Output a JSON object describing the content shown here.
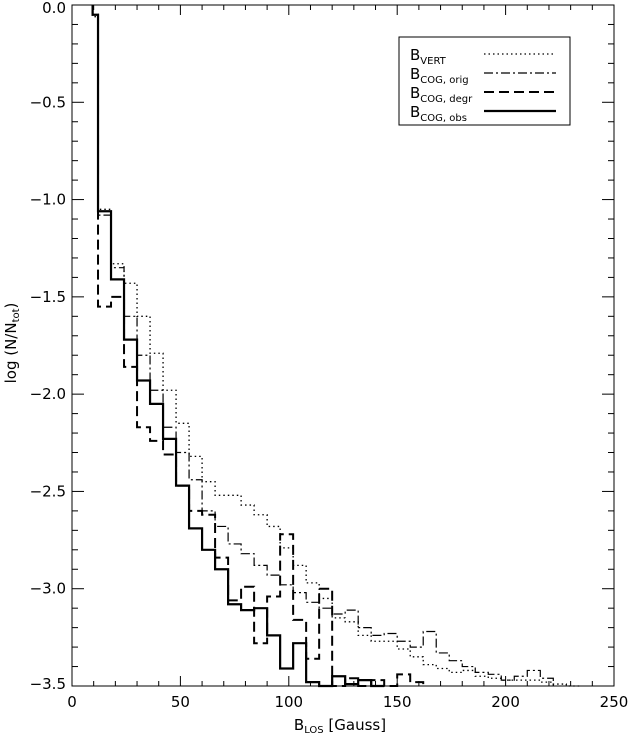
{
  "chart_data": {
    "type": "line",
    "subtype": "step-histogram",
    "xlabel": {
      "main": "B",
      "sub": "LOS",
      "rest": " [Gauss]"
    },
    "ylabel": {
      "pre": "log (N/N",
      "sub": "tot",
      "post": ")"
    },
    "xlim": [
      0,
      250
    ],
    "ylim": [
      -3.5,
      0.0
    ],
    "x_ticks": [
      0,
      50,
      100,
      150,
      200,
      250
    ],
    "x_tick_labels": [
      "0",
      "50",
      "100",
      "150",
      "200",
      "250"
    ],
    "y_ticks": [
      0.0,
      -0.5,
      -1.0,
      -1.5,
      -2.0,
      -2.5,
      -3.0,
      -3.5
    ],
    "y_tick_labels": [
      "0.0",
      "−0.5",
      "−1.0",
      "−1.5",
      "−2.0",
      "−2.5",
      "−3.0",
      "−3.5"
    ],
    "grid": false,
    "legend_position": "top-right",
    "series": [
      {
        "name": "B_VERT",
        "legend": {
          "main": "B",
          "sub": "VERT"
        },
        "style": "dotted",
        "edges": [
          9.5,
          12,
          18,
          24,
          30,
          36,
          42,
          48,
          54,
          60,
          66,
          72,
          78,
          84,
          90,
          96,
          102,
          108,
          114,
          120,
          126,
          132,
          138,
          144,
          150,
          156,
          162,
          168,
          174,
          180,
          186,
          192,
          198,
          204,
          210,
          216,
          222,
          228,
          234
        ],
        "values": [
          -0.06,
          -1.05,
          -1.33,
          -1.43,
          -1.6,
          -1.79,
          -1.98,
          -2.15,
          -2.32,
          -2.45,
          -2.52,
          -2.52,
          -2.57,
          -2.62,
          -2.68,
          -2.79,
          -2.88,
          -2.97,
          -3.05,
          -3.15,
          -3.17,
          -3.24,
          -3.27,
          -3.27,
          -3.31,
          -3.35,
          -3.39,
          -3.41,
          -3.43,
          -3.42,
          -3.45,
          -3.46,
          -3.47,
          -3.47,
          -3.47,
          -3.48,
          -3.49,
          -3.5
        ]
      },
      {
        "name": "B_COG, orig",
        "legend": {
          "main": "B",
          "sub": "COG, orig"
        },
        "style": "dashdot",
        "edges": [
          9.5,
          12,
          18,
          24,
          30,
          36,
          42,
          48,
          54,
          60,
          66,
          72,
          78,
          84,
          90,
          96,
          102,
          108,
          114,
          120,
          126,
          132,
          138,
          144,
          150,
          156,
          162,
          168,
          174,
          180,
          186,
          192,
          198,
          204,
          210,
          216,
          222
        ],
        "values": [
          -0.05,
          -1.08,
          -1.35,
          -1.6,
          -1.8,
          -1.98,
          -2.17,
          -2.3,
          -2.44,
          -2.6,
          -2.68,
          -2.77,
          -2.82,
          -2.88,
          -2.93,
          -2.98,
          -3.02,
          -3.07,
          -3.1,
          -3.13,
          -3.11,
          -3.2,
          -3.24,
          -3.23,
          -3.27,
          -3.3,
          -3.22,
          -3.33,
          -3.37,
          -3.4,
          -3.43,
          -3.44,
          -3.47,
          -3.45,
          -3.42,
          -3.46
        ]
      },
      {
        "name": "B_COG, degr",
        "legend": {
          "main": "B",
          "sub": "COG, degr"
        },
        "style": "dashed",
        "edges": [
          9.5,
          12,
          18,
          24,
          30,
          36,
          42,
          48,
          54,
          60,
          66,
          72,
          78,
          84,
          90,
          96,
          102,
          108,
          114,
          120,
          126,
          132,
          138,
          144,
          150,
          156,
          162
        ],
        "values": [
          -0.05,
          -1.55,
          -1.5,
          -1.86,
          -2.17,
          -2.24,
          -2.31,
          -2.47,
          -2.6,
          -2.62,
          -2.84,
          -3.06,
          -2.99,
          -3.28,
          -3.04,
          -2.72,
          -3.16,
          -3.36,
          -3.0,
          -3.5,
          -3.46,
          -3.5,
          -3.47,
          -3.5,
          -3.44,
          -3.48
        ]
      },
      {
        "name": "B_COG, obs",
        "legend": {
          "main": "B",
          "sub": "COG, obs"
        },
        "style": "solid",
        "edges": [
          9.5,
          12,
          18,
          24,
          30,
          36,
          42,
          48,
          54,
          60,
          66,
          72,
          78,
          84,
          90,
          96,
          102,
          108,
          114,
          120,
          126,
          132,
          138,
          144
        ],
        "values": [
          -0.05,
          -1.06,
          -1.41,
          -1.72,
          -1.93,
          -2.05,
          -2.23,
          -2.47,
          -2.69,
          -2.8,
          -2.9,
          -3.08,
          -3.11,
          -3.1,
          -3.24,
          -3.41,
          -3.28,
          -3.48,
          -3.5,
          -3.45,
          -3.49,
          -3.47,
          -3.5
        ]
      }
    ]
  }
}
